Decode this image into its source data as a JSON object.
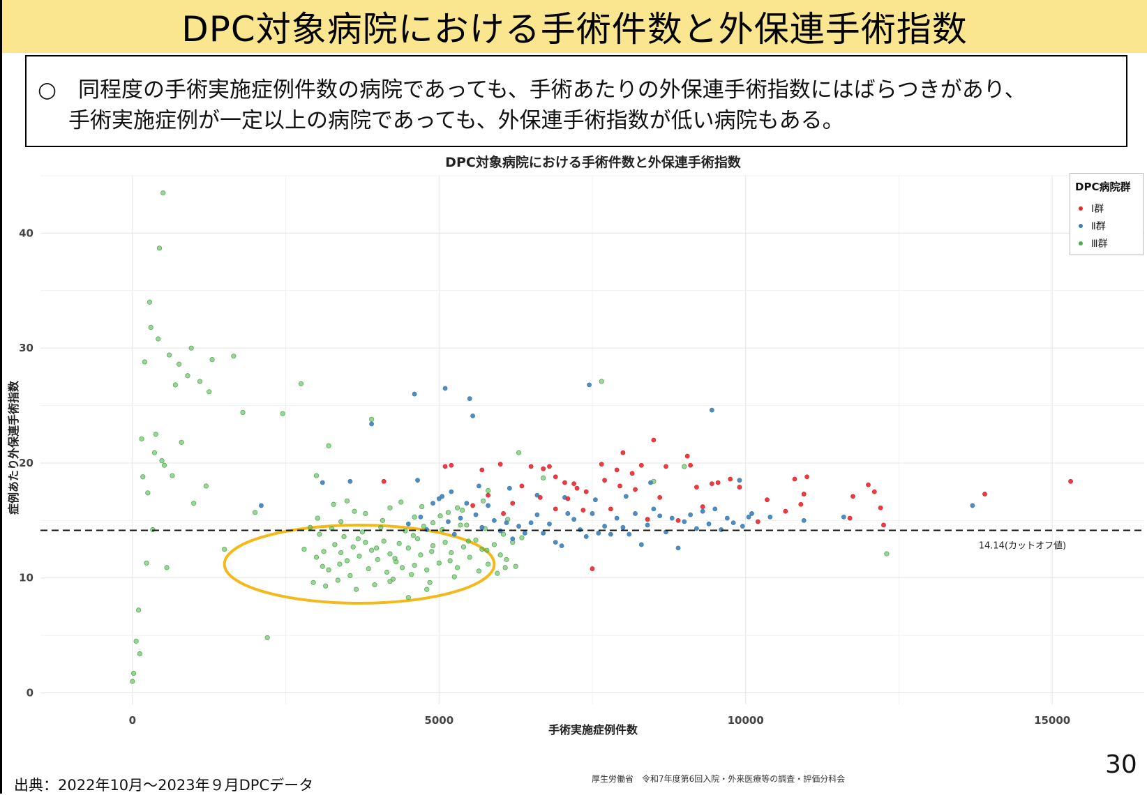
{
  "slide": {
    "title": "DPC対象病院における手術件数と外保連手術指数",
    "note_line1": "○　同程度の手術実施症例件数の病院であっても、手術あたりの外保連手術指数にはばらつきがあり、",
    "note_line2": "手術実施症例が一定以上の病院であっても、外保連手術指数が低い病院もある。",
    "source": "出典：2022年10月～2023年９月DPCデータ",
    "footer": "厚生労働省　令和7年度第6回入院・外来医療等の調査・評価分科会",
    "page_number": "30"
  },
  "chart_data": {
    "type": "scatter",
    "title": "DPC対象病院における手術件数と外保連手術指数",
    "xlabel": "手術実施症例件数",
    "ylabel": "症例あたり外保連手術指数",
    "xlim": [
      -1500,
      16500
    ],
    "ylim": [
      -1,
      45
    ],
    "xticks": [
      0,
      5000,
      10000,
      15000
    ],
    "yticks": [
      0,
      10,
      20,
      30,
      40
    ],
    "grid": true,
    "legend_title": "DPC病院群",
    "legend_position": "top-right",
    "cutoff": {
      "value": 14.14,
      "label": "14.14(カットオフ値)",
      "style": "dashed"
    },
    "highlight_ellipse": {
      "cx": 3700,
      "cy": 11.2,
      "rx": 2200,
      "ry": 3.4,
      "color": "#f3b91a"
    },
    "series": [
      {
        "name": "Ⅰ群",
        "color": "#e3292e",
        "points": [
          [
            4100,
            18.4
          ],
          [
            5100,
            19.7
          ],
          [
            5200,
            19.8
          ],
          [
            5700,
            19.4
          ],
          [
            6000,
            19.9
          ],
          [
            6500,
            19.7
          ],
          [
            6700,
            19.5
          ],
          [
            6800,
            19.7
          ],
          [
            6900,
            18.8
          ],
          [
            7050,
            18.3
          ],
          [
            7200,
            18.2
          ],
          [
            7500,
            10.8
          ],
          [
            7650,
            19.9
          ],
          [
            7700,
            18.5
          ],
          [
            7900,
            19.4
          ],
          [
            8000,
            20.9
          ],
          [
            8150,
            19.1
          ],
          [
            8300,
            19.8
          ],
          [
            8500,
            22.0
          ],
          [
            8700,
            19.7
          ],
          [
            9050,
            20.6
          ],
          [
            9100,
            19.8
          ],
          [
            9200,
            17.9
          ],
          [
            9450,
            18.2
          ],
          [
            9550,
            18.3
          ],
          [
            9900,
            17.9
          ],
          [
            10200,
            14.9
          ],
          [
            10350,
            16.8
          ],
          [
            10800,
            18.6
          ],
          [
            10950,
            17.3
          ],
          [
            11000,
            18.8
          ],
          [
            11750,
            17.1
          ],
          [
            12000,
            18.1
          ],
          [
            12250,
            14.6
          ],
          [
            13900,
            17.3
          ],
          [
            15300,
            18.4
          ],
          [
            6200,
            16.5
          ],
          [
            6650,
            17.0
          ],
          [
            7250,
            17.8
          ],
          [
            7800,
            16.0
          ],
          [
            8400,
            15.1
          ],
          [
            8900,
            15.0
          ],
          [
            5550,
            16.3
          ],
          [
            5800,
            17.2
          ],
          [
            6350,
            18.0
          ],
          [
            7100,
            16.9
          ],
          [
            7400,
            17.5
          ],
          [
            7950,
            18.0
          ],
          [
            8600,
            17.0
          ],
          [
            9300,
            16.2
          ],
          [
            10650,
            15.8
          ],
          [
            10900,
            16.4
          ],
          [
            11700,
            15.2
          ],
          [
            12100,
            17.5
          ],
          [
            12200,
            16.1
          ],
          [
            6050,
            15.6
          ],
          [
            6900,
            16.0
          ],
          [
            7350,
            15.9
          ],
          [
            8200,
            17.7
          ],
          [
            9750,
            18.6
          ]
        ]
      },
      {
        "name": "Ⅱ群",
        "color": "#3d7fb9",
        "points": [
          [
            2100,
            16.3
          ],
          [
            3100,
            18.3
          ],
          [
            3550,
            18.4
          ],
          [
            3900,
            23.4
          ],
          [
            4600,
            26.0
          ],
          [
            4650,
            18.5
          ],
          [
            5100,
            26.5
          ],
          [
            5500,
            25.6
          ],
          [
            5550,
            24.1
          ],
          [
            7450,
            26.8
          ],
          [
            9450,
            24.6
          ],
          [
            9900,
            18.5
          ],
          [
            10050,
            15.3
          ],
          [
            10400,
            15.3
          ],
          [
            10950,
            15.0
          ],
          [
            11600,
            15.3
          ],
          [
            13700,
            16.3
          ],
          [
            4500,
            14.7
          ],
          [
            4700,
            15.3
          ],
          [
            4800,
            14.2
          ],
          [
            4900,
            16.5
          ],
          [
            5000,
            16.9
          ],
          [
            5050,
            17.1
          ],
          [
            5150,
            14.9
          ],
          [
            5250,
            13.8
          ],
          [
            5350,
            15.2
          ],
          [
            5450,
            16.5
          ],
          [
            5600,
            15.5
          ],
          [
            5700,
            14.4
          ],
          [
            5800,
            16.3
          ],
          [
            5900,
            15.0
          ],
          [
            6000,
            14.1
          ],
          [
            6100,
            14.8
          ],
          [
            6200,
            13.4
          ],
          [
            6300,
            14.5
          ],
          [
            6400,
            13.9
          ],
          [
            6500,
            14.8
          ],
          [
            6600,
            15.5
          ],
          [
            6700,
            13.9
          ],
          [
            6800,
            14.7
          ],
          [
            6900,
            13.1
          ],
          [
            7000,
            12.8
          ],
          [
            7100,
            15.6
          ],
          [
            7200,
            15.1
          ],
          [
            7300,
            14.2
          ],
          [
            7400,
            13.6
          ],
          [
            7500,
            15.6
          ],
          [
            7600,
            13.9
          ],
          [
            7700,
            14.5
          ],
          [
            7800,
            13.8
          ],
          [
            7900,
            15.2
          ],
          [
            8000,
            14.4
          ],
          [
            8100,
            13.8
          ],
          [
            8200,
            15.6
          ],
          [
            8300,
            12.9
          ],
          [
            8400,
            14.6
          ],
          [
            8500,
            16.0
          ],
          [
            8600,
            15.4
          ],
          [
            8700,
            14.0
          ],
          [
            8800,
            15.2
          ],
          [
            8900,
            12.6
          ],
          [
            9000,
            14.9
          ],
          [
            9100,
            15.5
          ],
          [
            9200,
            14.3
          ],
          [
            9300,
            15.8
          ],
          [
            9400,
            14.7
          ],
          [
            9500,
            16.0
          ],
          [
            9600,
            14.2
          ],
          [
            9700,
            15.2
          ],
          [
            9800,
            14.8
          ],
          [
            9950,
            14.5
          ],
          [
            10100,
            15.6
          ],
          [
            5200,
            17.5
          ],
          [
            5650,
            18.0
          ],
          [
            6150,
            17.8
          ],
          [
            6600,
            17.2
          ],
          [
            7050,
            17.0
          ],
          [
            7550,
            16.8
          ],
          [
            8050,
            17.1
          ],
          [
            8450,
            18.3
          ]
        ]
      },
      {
        "name": "Ⅲ群",
        "color": "#4daf4a",
        "points": [
          [
            0,
            1.0
          ],
          [
            20,
            1.7
          ],
          [
            60,
            4.5
          ],
          [
            100,
            7.2
          ],
          [
            120,
            3.4
          ],
          [
            150,
            22.1
          ],
          [
            170,
            18.8
          ],
          [
            200,
            28.8
          ],
          [
            230,
            11.3
          ],
          [
            250,
            17.4
          ],
          [
            280,
            34.0
          ],
          [
            300,
            31.8
          ],
          [
            330,
            14.2
          ],
          [
            360,
            20.9
          ],
          [
            380,
            22.5
          ],
          [
            420,
            30.8
          ],
          [
            440,
            38.7
          ],
          [
            480,
            20.2
          ],
          [
            500,
            43.5
          ],
          [
            520,
            19.8
          ],
          [
            560,
            10.9
          ],
          [
            600,
            29.4
          ],
          [
            650,
            18.9
          ],
          [
            700,
            26.8
          ],
          [
            760,
            28.6
          ],
          [
            800,
            21.8
          ],
          [
            900,
            27.6
          ],
          [
            960,
            30.0
          ],
          [
            1000,
            16.5
          ],
          [
            1100,
            27.1
          ],
          [
            1200,
            18.0
          ],
          [
            1250,
            26.2
          ],
          [
            1300,
            29.0
          ],
          [
            1500,
            12.5
          ],
          [
            1650,
            29.3
          ],
          [
            1800,
            24.4
          ],
          [
            2000,
            15.7
          ],
          [
            2200,
            4.8
          ],
          [
            2450,
            24.3
          ],
          [
            2750,
            26.9
          ],
          [
            3000,
            18.9
          ],
          [
            3200,
            21.5
          ],
          [
            3500,
            16.7
          ],
          [
            3900,
            23.8
          ],
          [
            4200,
            9.7
          ],
          [
            4500,
            8.3
          ],
          [
            4800,
            9.0
          ],
          [
            5300,
            16.1
          ],
          [
            5800,
            17.6
          ],
          [
            6300,
            20.9
          ],
          [
            6700,
            18.7
          ],
          [
            7650,
            27.1
          ],
          [
            8500,
            18.4
          ],
          [
            9000,
            19.7
          ],
          [
            12300,
            12.1
          ],
          [
            2800,
            12.5
          ],
          [
            3000,
            11.8
          ],
          [
            3100,
            11.0
          ],
          [
            3200,
            10.7
          ],
          [
            3300,
            12.9
          ],
          [
            3400,
            12.2
          ],
          [
            3500,
            11.5
          ],
          [
            3550,
            10.2
          ],
          [
            3600,
            12.7
          ],
          [
            3700,
            11.9
          ],
          [
            3800,
            13.1
          ],
          [
            3850,
            10.8
          ],
          [
            3900,
            12.4
          ],
          [
            4000,
            11.6
          ],
          [
            4100,
            13.2
          ],
          [
            4150,
            10.5
          ],
          [
            4200,
            12.1
          ],
          [
            4300,
            11.4
          ],
          [
            4350,
            13.0
          ],
          [
            4400,
            10.9
          ],
          [
            4500,
            12.6
          ],
          [
            4600,
            11.1
          ],
          [
            4650,
            13.4
          ],
          [
            4700,
            12.0
          ],
          [
            4800,
            10.7
          ],
          [
            4900,
            12.8
          ],
          [
            5000,
            11.3
          ],
          [
            5100,
            13.1
          ],
          [
            5200,
            12.2
          ],
          [
            5300,
            10.9
          ],
          [
            5400,
            12.7
          ],
          [
            5500,
            11.8
          ],
          [
            5600,
            13.3
          ],
          [
            5700,
            12.5
          ],
          [
            5800,
            11.2
          ],
          [
            5900,
            12.9
          ],
          [
            6000,
            12.0
          ],
          [
            6100,
            11.6
          ],
          [
            6200,
            13.1
          ],
          [
            3400,
            14.9
          ],
          [
            3800,
            15.6
          ],
          [
            4200,
            16.1
          ],
          [
            4600,
            15.3
          ],
          [
            4900,
            14.8
          ],
          [
            5150,
            15.7
          ],
          [
            5450,
            14.6
          ],
          [
            2950,
            9.6
          ],
          [
            3050,
            13.8
          ],
          [
            3150,
            9.3
          ],
          [
            3250,
            14.3
          ],
          [
            3350,
            9.8
          ],
          [
            3450,
            13.6
          ],
          [
            3650,
            9.0
          ],
          [
            3750,
            14.0
          ],
          [
            3950,
            9.4
          ],
          [
            4050,
            14.4
          ],
          [
            4250,
            9.9
          ],
          [
            4450,
            14.1
          ],
          [
            4550,
            10.3
          ],
          [
            4750,
            14.5
          ],
          [
            4850,
            9.6
          ],
          [
            5050,
            14.2
          ],
          [
            5250,
            10.1
          ],
          [
            5350,
            14.6
          ],
          [
            5650,
            10.6
          ],
          [
            5750,
            14.3
          ],
          [
            5950,
            10.4
          ],
          [
            6050,
            13.8
          ],
          [
            6250,
            11.0
          ],
          [
            6350,
            13.5
          ],
          [
            3020,
            15.2
          ],
          [
            3280,
            16.4
          ],
          [
            3620,
            15.8
          ],
          [
            4080,
            15.0
          ],
          [
            4380,
            16.6
          ],
          [
            4720,
            16.2
          ],
          [
            5020,
            15.4
          ],
          [
            5380,
            15.9
          ],
          [
            5720,
            16.7
          ],
          [
            6120,
            15.1
          ],
          [
            2900,
            14.4
          ],
          [
            3120,
            12.3
          ],
          [
            3380,
            11.2
          ],
          [
            3680,
            13.4
          ],
          [
            3980,
            12.6
          ],
          [
            4280,
            11.7
          ],
          [
            4580,
            13.7
          ],
          [
            4880,
            12.3
          ],
          [
            5180,
            11.5
          ],
          [
            5480,
            13.2
          ],
          [
            5780,
            12.4
          ],
          [
            6080,
            10.9
          ]
        ]
      }
    ]
  }
}
